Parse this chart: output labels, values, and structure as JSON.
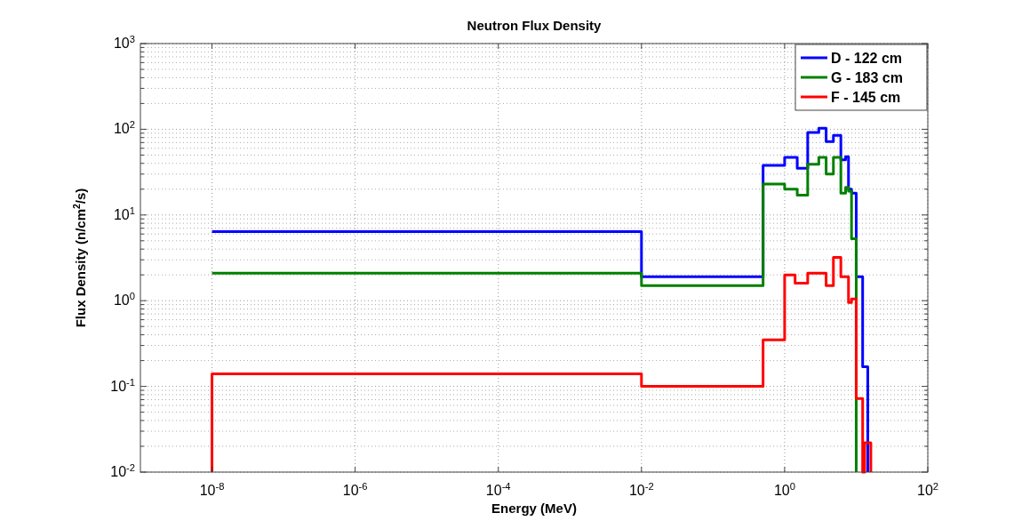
{
  "chart_data": {
    "type": "step",
    "title": "Neutron Flux Density",
    "xlabel": "Energy (MeV)",
    "ylabel": "Flux Density (n/cm$^{2}$/s)",
    "log": "xy",
    "grid": true,
    "legend": "top right",
    "xlim": [
      1e-09,
      100
    ],
    "ylim": [
      0.01,
      1000
    ],
    "xticks": [
      {
        "value": 1e-08,
        "label": "10$^{-8}$"
      },
      {
        "value": 1e-06,
        "label": "10$^{-6}$"
      },
      {
        "value": 0.0001,
        "label": "10$^{-4}$"
      },
      {
        "value": 0.01,
        "label": "10$^{-2}$"
      },
      {
        "value": 1,
        "label": "10$^{0}$"
      },
      {
        "value": 100,
        "label": "10$^{2}$"
      }
    ],
    "yticks": [
      {
        "value": 0.01,
        "label": "10$^{-2}$"
      },
      {
        "value": 0.1,
        "label": "10$^{-1}$"
      },
      {
        "value": 1,
        "label": "10$^{0}$"
      },
      {
        "value": 10,
        "label": "10$^{1}$"
      },
      {
        "value": 100,
        "label": "10$^{2}$"
      },
      {
        "value": 1000,
        "label": "10$^{3}$"
      }
    ],
    "series": [
      {
        "name": "D - 122 cm",
        "color": "#0000ff",
        "x": [
          1e-08,
          0.01,
          0.5,
          1.0,
          1.5,
          2.1,
          3.0,
          3.8,
          4.8,
          6.1,
          7.1,
          7.8,
          8.6,
          10.0,
          12.3,
          14.5
        ],
        "values": [
          6.4,
          1.9,
          38,
          47,
          35,
          92,
          103,
          72,
          85,
          44,
          48,
          20,
          18,
          1.9,
          0.17,
          0.01
        ]
      },
      {
        "name": "G - 183 cm",
        "color": "#008000",
        "x": [
          1e-08,
          0.01,
          0.5,
          1.0,
          1.5,
          2.1,
          3.0,
          3.8,
          4.8,
          6.1,
          7.1,
          7.8,
          8.6,
          10.0
        ],
        "values": [
          2.1,
          1.5,
          23,
          20,
          17,
          39,
          47,
          30,
          47,
          18,
          21,
          19,
          5.3,
          0.01
        ]
      },
      {
        "name": "F - 145 cm",
        "color": "#ff0000",
        "x": [
          1e-08,
          1e-08,
          0.01,
          0.5,
          1.0,
          1.4,
          2.1,
          3.8,
          4.8,
          6.1,
          7.8,
          8.6,
          10.0,
          12.3,
          13.1,
          16
        ],
        "values": [
          0.01,
          0.14,
          0.1,
          0.35,
          2.0,
          1.6,
          2.1,
          1.5,
          3.2,
          1.9,
          0.95,
          1.05,
          0.072,
          0.01,
          0.022,
          0.01
        ]
      }
    ]
  }
}
